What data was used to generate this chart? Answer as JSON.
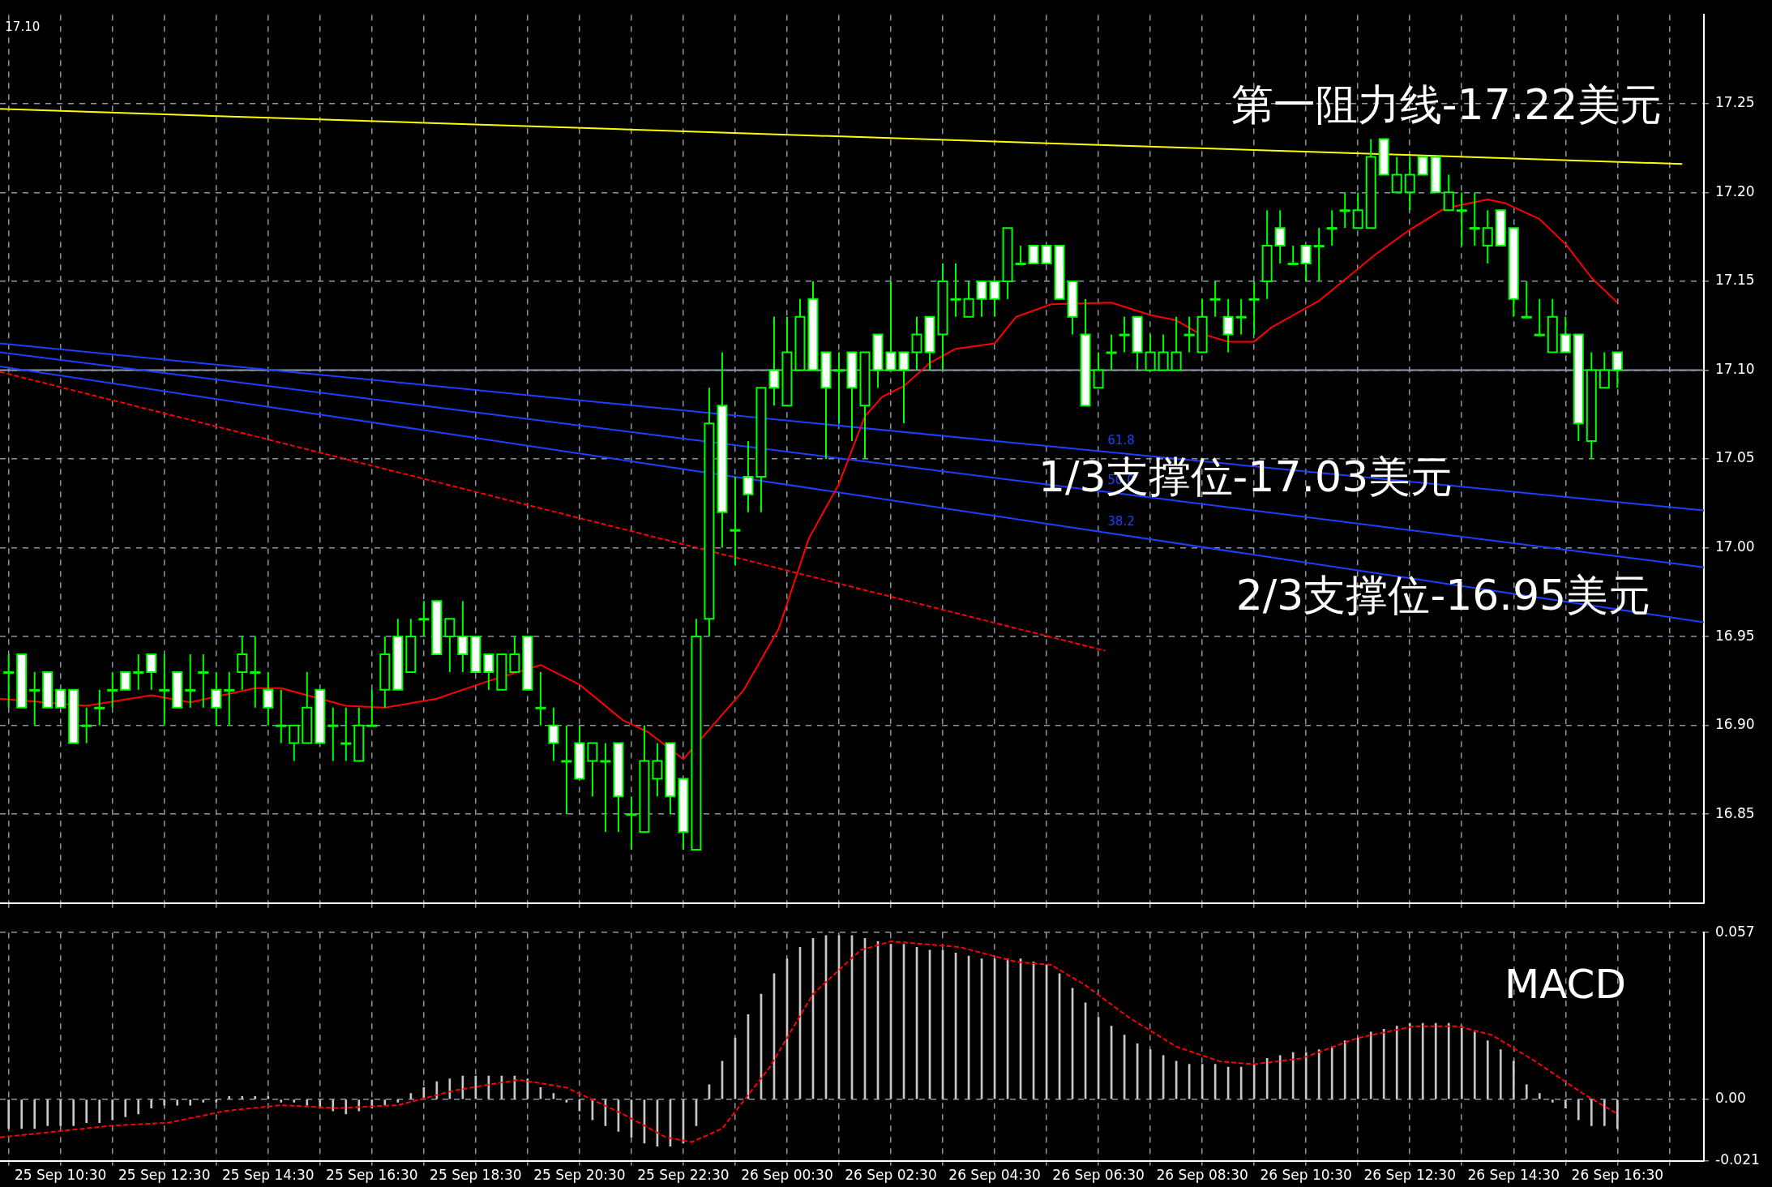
{
  "chart_data": [
    {
      "type": "candlestick",
      "color": "#00ff00",
      "x": [
        "--09-25T09:30",
        "--09-25T09:45",
        "--09-25T10:00",
        "--09-25T10:15",
        "--09-25T10:30",
        "--09-25T10:45",
        "--09-25T11:00",
        "--09-25T11:15",
        "--09-25T11:30",
        "--09-25T11:45",
        "--09-25T12:00",
        "--09-25T12:15",
        "--09-25T12:30",
        "--09-25T12:45",
        "--09-25T13:00",
        "--09-25T13:15",
        "--09-25T13:30",
        "--09-25T13:45",
        "--09-25T14:00",
        "--09-25T14:15",
        "--09-25T14:30",
        "--09-25T14:45",
        "--09-25T15:00",
        "--09-25T15:15",
        "--09-25T15:30",
        "--09-25T15:45",
        "--09-25T16:00",
        "--09-25T16:15",
        "--09-25T16:30",
        "--09-25T16:45",
        "--09-25T17:00",
        "--09-25T17:15",
        "--09-25T17:30",
        "--09-25T17:45",
        "--09-25T18:00",
        "--09-25T18:15",
        "--09-25T18:30",
        "--09-25T18:45",
        "--09-25T19:00",
        "--09-25T19:15",
        "--09-25T19:30",
        "--09-25T19:45",
        "--09-25T20:00",
        "--09-25T20:15",
        "--09-25T20:30",
        "--09-25T20:45",
        "--09-25T21:00",
        "--09-25T21:15",
        "--09-25T21:30",
        "--09-25T21:45",
        "--09-25T22:00",
        "--09-25T22:15",
        "--09-25T22:30",
        "--09-25T22:45",
        "--09-25T23:00",
        "--09-25T23:15",
        "--09-25T23:30",
        "--09-25T23:45",
        "--09-26T00:00",
        "--09-26T00:15",
        "--09-26T00:30",
        "--09-26T00:45",
        "--09-26T01:00",
        "--09-26T01:15",
        "--09-26T01:30",
        "--09-26T01:45",
        "--09-26T02:00",
        "--09-26T02:15",
        "--09-26T02:30",
        "--09-26T02:45",
        "--09-26T03:00",
        "--09-26T03:15",
        "--09-26T03:30",
        "--09-26T03:45",
        "--09-26T04:00",
        "--09-26T04:15",
        "--09-26T04:30",
        "--09-26T04:45",
        "--09-26T05:00",
        "--09-26T05:15",
        "--09-26T05:30",
        "--09-26T05:45",
        "--09-26T06:00",
        "--09-26T06:15",
        "--09-26T06:30",
        "--09-26T06:45",
        "--09-26T07:00",
        "--09-26T07:15",
        "--09-26T07:30",
        "--09-26T07:45",
        "--09-26T08:00",
        "--09-26T08:15",
        "--09-26T08:30",
        "--09-26T08:45",
        "--09-26T09:00",
        "--09-26T09:15",
        "--09-26T09:30",
        "--09-26T09:45",
        "--09-26T10:00",
        "--09-26T10:15",
        "--09-26T10:30",
        "--09-26T10:45",
        "--09-26T11:00",
        "--09-26T11:15",
        "--09-26T11:30",
        "--09-26T11:45",
        "--09-26T12:00",
        "--09-26T12:15",
        "--09-26T12:30",
        "--09-26T12:45",
        "--09-26T13:00",
        "--09-26T13:15",
        "--09-26T13:30",
        "--09-26T13:45",
        "--09-26T14:00",
        "--09-26T14:15",
        "--09-26T14:30",
        "--09-26T14:45",
        "--09-26T15:00",
        "--09-26T15:15",
        "--09-26T15:30",
        "--09-26T15:45",
        "--09-26T16:00",
        "--09-26T16:15",
        "--09-26T16:30"
      ],
      "ohlc": [
        [
          16.93,
          16.94,
          16.91,
          16.93
        ],
        [
          16.94,
          16.94,
          16.91,
          16.91
        ],
        [
          16.92,
          16.93,
          16.9,
          16.92
        ],
        [
          16.93,
          16.93,
          16.91,
          16.91
        ],
        [
          16.92,
          16.92,
          16.91,
          16.91
        ],
        [
          16.92,
          16.92,
          16.89,
          16.89
        ],
        [
          16.9,
          16.91,
          16.89,
          16.9
        ],
        [
          16.91,
          16.92,
          16.9,
          16.91
        ],
        [
          16.92,
          16.93,
          16.91,
          16.92
        ],
        [
          16.93,
          16.93,
          16.92,
          16.92
        ],
        [
          16.93,
          16.94,
          16.92,
          16.93
        ],
        [
          16.94,
          16.94,
          16.92,
          16.93
        ],
        [
          16.92,
          16.94,
          16.9,
          16.92
        ],
        [
          16.93,
          16.93,
          16.91,
          16.91
        ],
        [
          16.92,
          16.94,
          16.91,
          16.92
        ],
        [
          16.93,
          16.94,
          16.91,
          16.93
        ],
        [
          16.92,
          16.93,
          16.9,
          16.91
        ],
        [
          16.92,
          16.93,
          16.9,
          16.92
        ],
        [
          16.93,
          16.95,
          16.92,
          16.94
        ],
        [
          16.93,
          16.95,
          16.91,
          16.93
        ],
        [
          16.92,
          16.93,
          16.9,
          16.91
        ],
        [
          16.9,
          16.92,
          16.89,
          16.9
        ],
        [
          16.89,
          16.9,
          16.88,
          16.9
        ],
        [
          16.89,
          16.93,
          16.89,
          16.91
        ],
        [
          16.92,
          16.92,
          16.89,
          16.89
        ],
        [
          16.9,
          16.91,
          16.88,
          16.9
        ],
        [
          16.89,
          16.91,
          16.88,
          16.89
        ],
        [
          16.88,
          16.91,
          16.88,
          16.9
        ],
        [
          16.9,
          16.92,
          16.9,
          16.9
        ],
        [
          16.92,
          16.95,
          16.91,
          16.94
        ],
        [
          16.95,
          16.96,
          16.92,
          16.92
        ],
        [
          16.93,
          16.96,
          16.93,
          16.95
        ],
        [
          16.96,
          16.97,
          16.95,
          16.96
        ],
        [
          16.97,
          16.97,
          16.94,
          16.94
        ],
        [
          16.95,
          16.96,
          16.93,
          16.96
        ],
        [
          16.95,
          16.97,
          16.93,
          16.94
        ],
        [
          16.95,
          16.95,
          16.93,
          16.93
        ],
        [
          16.94,
          16.94,
          16.92,
          16.93
        ],
        [
          16.92,
          16.94,
          16.92,
          16.94
        ],
        [
          16.93,
          16.95,
          16.93,
          16.94
        ],
        [
          16.95,
          16.95,
          16.92,
          16.92
        ],
        [
          16.91,
          16.93,
          16.9,
          16.91
        ],
        [
          16.9,
          16.91,
          16.88,
          16.89
        ],
        [
          16.88,
          16.9,
          16.85,
          16.88
        ],
        [
          16.89,
          16.9,
          16.87,
          16.87
        ],
        [
          16.88,
          16.89,
          16.86,
          16.89
        ],
        [
          16.88,
          16.89,
          16.84,
          16.88
        ],
        [
          16.89,
          16.89,
          16.84,
          16.86
        ],
        [
          16.85,
          16.86,
          16.83,
          16.85
        ],
        [
          16.84,
          16.9,
          16.84,
          16.88
        ],
        [
          16.87,
          16.89,
          16.86,
          16.88
        ],
        [
          16.89,
          16.89,
          16.85,
          16.86
        ],
        [
          16.87,
          16.87,
          16.83,
          16.84
        ],
        [
          16.83,
          16.96,
          16.83,
          16.95
        ],
        [
          16.96,
          17.09,
          16.95,
          17.07
        ],
        [
          17.08,
          17.11,
          17.0,
          17.02
        ],
        [
          17.01,
          17.04,
          16.99,
          17.01
        ],
        [
          17.04,
          17.06,
          17.02,
          17.03
        ],
        [
          17.04,
          17.09,
          17.02,
          17.09
        ],
        [
          17.1,
          17.13,
          17.08,
          17.09
        ],
        [
          17.08,
          17.13,
          17.08,
          17.11
        ],
        [
          17.1,
          17.14,
          17.1,
          17.13
        ],
        [
          17.14,
          17.15,
          17.1,
          17.1
        ],
        [
          17.11,
          17.11,
          17.05,
          17.09
        ],
        [
          17.1,
          17.11,
          17.07,
          17.1
        ],
        [
          17.11,
          17.11,
          17.06,
          17.09
        ],
        [
          17.08,
          17.11,
          17.05,
          17.11
        ],
        [
          17.12,
          17.12,
          17.09,
          17.1
        ],
        [
          17.11,
          17.15,
          17.1,
          17.1
        ],
        [
          17.11,
          17.11,
          17.07,
          17.1
        ],
        [
          17.11,
          17.13,
          17.1,
          17.12
        ],
        [
          17.13,
          17.13,
          17.1,
          17.11
        ],
        [
          17.12,
          17.16,
          17.1,
          17.15
        ],
        [
          17.14,
          17.16,
          17.13,
          17.14
        ],
        [
          17.13,
          17.15,
          17.13,
          17.14
        ],
        [
          17.15,
          17.15,
          17.13,
          17.14
        ],
        [
          17.15,
          17.15,
          17.13,
          17.14
        ],
        [
          17.15,
          17.18,
          17.14,
          17.18
        ],
        [
          17.16,
          17.17,
          17.16,
          17.16
        ],
        [
          17.17,
          17.17,
          17.16,
          17.16
        ],
        [
          17.17,
          17.17,
          17.16,
          17.16
        ],
        [
          17.17,
          17.17,
          17.14,
          17.14
        ],
        [
          17.15,
          17.15,
          17.12,
          17.13
        ],
        [
          17.12,
          17.14,
          17.08,
          17.08
        ],
        [
          17.09,
          17.11,
          17.09,
          17.1
        ],
        [
          17.11,
          17.12,
          17.1,
          17.11
        ],
        [
          17.12,
          17.13,
          17.11,
          17.12
        ],
        [
          17.13,
          17.13,
          17.1,
          17.11
        ],
        [
          17.1,
          17.12,
          17.1,
          17.11
        ],
        [
          17.1,
          17.12,
          17.1,
          17.11
        ],
        [
          17.1,
          17.13,
          17.1,
          17.11
        ],
        [
          17.12,
          17.13,
          17.11,
          17.12
        ],
        [
          17.11,
          17.14,
          17.11,
          17.13
        ],
        [
          17.14,
          17.15,
          17.13,
          17.14
        ],
        [
          17.13,
          17.14,
          17.11,
          17.12
        ],
        [
          17.13,
          17.14,
          17.12,
          17.13
        ],
        [
          17.14,
          17.15,
          17.12,
          17.14
        ],
        [
          17.15,
          17.19,
          17.14,
          17.17
        ],
        [
          17.18,
          17.19,
          17.16,
          17.17
        ],
        [
          17.16,
          17.17,
          17.16,
          17.16
        ],
        [
          17.17,
          17.17,
          17.15,
          17.16
        ],
        [
          17.17,
          17.18,
          17.15,
          17.17
        ],
        [
          17.18,
          17.19,
          17.17,
          17.18
        ],
        [
          17.19,
          17.2,
          17.18,
          17.19
        ],
        [
          17.18,
          17.2,
          17.18,
          17.19
        ],
        [
          17.18,
          17.23,
          17.18,
          17.22
        ],
        [
          17.23,
          17.23,
          17.21,
          17.21
        ],
        [
          17.2,
          17.22,
          17.2,
          17.21
        ],
        [
          17.2,
          17.22,
          17.19,
          17.21
        ],
        [
          17.22,
          17.22,
          17.21,
          17.21
        ],
        [
          17.22,
          17.22,
          17.2,
          17.2
        ],
        [
          17.19,
          17.21,
          17.19,
          17.2
        ],
        [
          17.19,
          17.2,
          17.17,
          17.19
        ],
        [
          17.18,
          17.2,
          17.17,
          17.18
        ],
        [
          17.17,
          17.19,
          17.16,
          17.18
        ],
        [
          17.19,
          17.19,
          17.17,
          17.17
        ],
        [
          17.18,
          17.18,
          17.13,
          17.14
        ],
        [
          17.13,
          17.15,
          17.13,
          17.13
        ],
        [
          17.12,
          17.14,
          17.12,
          17.12
        ],
        [
          17.11,
          17.14,
          17.11,
          17.13
        ],
        [
          17.12,
          17.13,
          17.11,
          17.11
        ],
        [
          17.12,
          17.12,
          17.06,
          17.07
        ],
        [
          17.06,
          17.11,
          17.05,
          17.1
        ],
        [
          17.09,
          17.11,
          17.09,
          17.1
        ],
        [
          17.11,
          17.11,
          17.09,
          17.1
        ]
      ],
      "series": [
        {
          "type": "line",
          "color": "#ff0000",
          "x": [
            "--09-25T09:20",
            "--09-25T11:00",
            "--09-25T12:15",
            "--09-25T13:00",
            "--09-25T14:15",
            "--09-25T14:45",
            "--09-25T16:00",
            "--09-25T16:45",
            "--09-25T17:45",
            "--09-25T18:45",
            "--09-25T19:45",
            "--09-25T20:30",
            "--09-25T21:20",
            "--09-25T21:50",
            "--09-25T22:30",
            "--09-25T23:40",
            "--09-26T00:20",
            "--09-26T00:55",
            "--09-26T01:30",
            "--09-26T02:00",
            "--09-26T02:20",
            "--09-26T02:45",
            "--09-26T03:15",
            "--09-26T03:45",
            "--09-26T04:30",
            "--09-26T04:55",
            "--09-26T05:35",
            "--09-26T06:45",
            "--09-26T07:30",
            "--09-26T08:00",
            "--09-26T08:25",
            "--09-26T09:00",
            "--09-26T09:30",
            "--09-26T09:50",
            "--09-26T10:45",
            "--09-26T11:25",
            "--09-26T11:50",
            "--09-26T12:30",
            "--09-26T13:10",
            "--09-26T14:00",
            "--09-26T14:20",
            "--09-26T15:00",
            "--09-26T15:30",
            "--09-26T16:00",
            "--09-26T16:30"
          ],
          "values": [
            16.915,
            16.911,
            16.917,
            16.913,
            16.921,
            16.921,
            16.911,
            16.91,
            16.915,
            16.925,
            16.934,
            16.923,
            16.903,
            16.896,
            16.881,
            16.92,
            16.954,
            17.005,
            17.036,
            17.074,
            17.085,
            17.091,
            17.104,
            17.112,
            17.115,
            17.13,
            17.137,
            17.138,
            17.131,
            17.128,
            17.121,
            17.116,
            17.116,
            17.124,
            17.139,
            17.155,
            17.165,
            17.179,
            17.191,
            17.196,
            17.194,
            17.185,
            17.171,
            17.152,
            17.138
          ]
        },
        {
          "type": "line",
          "color": "#ffff00",
          "x": [
            "--09-25T09:20",
            "--09-26T17:45"
          ],
          "values": [
            17.247,
            17.216
          ]
        },
        {
          "type": "line",
          "name": "61.8",
          "color": "#1f3fff",
          "x": [
            "--09-25T09:20",
            "--09-26T18:10"
          ],
          "values": [
            17.115,
            17.021
          ]
        },
        {
          "type": "line",
          "name": "50.0",
          "color": "#1f3fff",
          "x": [
            "--09-25T09:20",
            "--09-26T18:10"
          ],
          "values": [
            17.11,
            16.989
          ]
        },
        {
          "type": "line",
          "name": "38.2",
          "color": "#1f3fff",
          "x": [
            "--09-25T09:20",
            "--09-26T18:10"
          ],
          "values": [
            17.102,
            16.958
          ]
        },
        {
          "type": "line",
          "color": "#ff0000",
          "line_style": "dashed",
          "x": [
            "--09-25T09:20",
            "--09-26T06:38"
          ],
          "values": [
            17.099,
            16.942
          ]
        }
      ],
      "xlim": [
        "--09-25T09:20",
        "--09-26T18:10"
      ],
      "xticks": [
        {
          "value": "--09-25T09:30",
          "label": null
        },
        {
          "value": "--09-25T10:30",
          "label": null
        },
        {
          "value": "--09-25T11:30",
          "label": null
        },
        {
          "value": "--09-25T12:30",
          "label": null
        },
        {
          "value": "--09-25T13:30",
          "label": null
        },
        {
          "value": "--09-25T14:30",
          "label": null
        },
        {
          "value": "--09-25T15:30",
          "label": null
        },
        {
          "value": "--09-25T16:30",
          "label": null
        },
        {
          "value": "--09-25T17:30",
          "label": null
        },
        {
          "value": "--09-25T18:30",
          "label": null
        },
        {
          "value": "--09-25T19:30",
          "label": null
        },
        {
          "value": "--09-25T20:30",
          "label": null
        },
        {
          "value": "--09-25T21:30",
          "label": null
        },
        {
          "value": "--09-25T22:30",
          "label": null
        },
        {
          "value": "--09-25T23:30",
          "label": null
        },
        {
          "value": "--09-26T00:30",
          "label": null
        },
        {
          "value": "--09-26T01:30",
          "label": null
        },
        {
          "value": "--09-26T02:30",
          "label": null
        },
        {
          "value": "--09-26T03:30",
          "label": null
        },
        {
          "value": "--09-26T04:30",
          "label": null
        },
        {
          "value": "--09-26T05:30",
          "label": null
        },
        {
          "value": "--09-26T06:30",
          "label": null
        },
        {
          "value": "--09-26T07:30",
          "label": null
        },
        {
          "value": "--09-26T08:30",
          "label": null
        },
        {
          "value": "--09-26T09:30",
          "label": null
        },
        {
          "value": "--09-26T10:30",
          "label": null
        },
        {
          "value": "--09-26T11:30",
          "label": null
        },
        {
          "value": "--09-26T12:30",
          "label": null
        },
        {
          "value": "--09-26T13:30",
          "label": null
        },
        {
          "value": "--09-26T14:30",
          "label": null
        },
        {
          "value": "--09-26T15:30",
          "label": null
        },
        {
          "value": "--09-26T16:30",
          "label": null
        },
        {
          "value": "--09-26T17:30",
          "label": null
        }
      ],
      "ylim": [
        16.8,
        17.3
      ],
      "yticks": [
        16.85,
        {
          "value": 16.9,
          "label": "16.90"
        },
        16.95,
        {
          "value": 17.0,
          "label": "17.00"
        },
        17.05,
        {
          "value": 17.1,
          "label": "17.10"
        },
        17.15,
        {
          "value": 17.2,
          "label": "17.20"
        },
        17.25
      ],
      "ref_lines": [
        {
          "axis": "y",
          "value": 17.1,
          "color": "#8c9aa8"
        }
      ],
      "annotations": [
        "17.10",
        "第一阻力线-17.22美元",
        "1/3支撑位-17.03美元",
        "2/3支撑位-16.95美元"
      ],
      "grid": true,
      "tick_labels": "y"
    },
    {
      "type": "bar",
      "title": "MACD",
      "x": [
        "--09-25T09:30",
        "--09-25T09:45",
        "--09-25T10:00",
        "--09-25T10:15",
        "--09-25T10:30",
        "--09-25T10:45",
        "--09-25T11:00",
        "--09-25T11:15",
        "--09-25T11:30",
        "--09-25T11:45",
        "--09-25T12:00",
        "--09-25T12:15",
        "--09-25T12:30",
        "--09-25T12:45",
        "--09-25T13:00",
        "--09-25T13:15",
        "--09-25T13:30",
        "--09-25T13:45",
        "--09-25T14:00",
        "--09-25T14:15",
        "--09-25T14:30",
        "--09-25T14:45",
        "--09-25T15:00",
        "--09-25T15:15",
        "--09-25T15:30",
        "--09-25T15:45",
        "--09-25T16:00",
        "--09-25T16:15",
        "--09-25T16:30",
        "--09-25T16:45",
        "--09-25T17:00",
        "--09-25T17:15",
        "--09-25T17:30",
        "--09-25T17:45",
        "--09-25T18:00",
        "--09-25T18:15",
        "--09-25T18:30",
        "--09-25T18:45",
        "--09-25T19:00",
        "--09-25T19:15",
        "--09-25T19:30",
        "--09-25T19:45",
        "--09-25T20:00",
        "--09-25T20:15",
        "--09-25T20:30",
        "--09-25T20:45",
        "--09-25T21:00",
        "--09-25T21:15",
        "--09-25T21:30",
        "--09-25T21:45",
        "--09-25T22:00",
        "--09-25T22:15",
        "--09-25T22:30",
        "--09-25T22:45",
        "--09-25T23:00",
        "--09-25T23:15",
        "--09-25T23:30",
        "--09-25T23:45",
        "--09-26T00:00",
        "--09-26T00:15",
        "--09-26T00:30",
        "--09-26T00:45",
        "--09-26T01:00",
        "--09-26T01:15",
        "--09-26T01:30",
        "--09-26T01:45",
        "--09-26T02:00",
        "--09-26T02:15",
        "--09-26T02:30",
        "--09-26T02:45",
        "--09-26T03:00",
        "--09-26T03:15",
        "--09-26T03:30",
        "--09-26T03:45",
        "--09-26T04:00",
        "--09-26T04:15",
        "--09-26T04:30",
        "--09-26T04:45",
        "--09-26T05:00",
        "--09-26T05:15",
        "--09-26T05:30",
        "--09-26T05:45",
        "--09-26T06:00",
        "--09-26T06:15",
        "--09-26T06:30",
        "--09-26T06:45",
        "--09-26T07:00",
        "--09-26T07:15",
        "--09-26T07:30",
        "--09-26T07:45",
        "--09-26T08:00",
        "--09-26T08:15",
        "--09-26T08:30",
        "--09-26T08:45",
        "--09-26T09:00",
        "--09-26T09:15",
        "--09-26T09:30",
        "--09-26T09:45",
        "--09-26T10:00",
        "--09-26T10:15",
        "--09-26T10:30",
        "--09-26T10:45",
        "--09-26T11:00",
        "--09-26T11:15",
        "--09-26T11:30",
        "--09-26T11:45",
        "--09-26T12:00",
        "--09-26T12:15",
        "--09-26T12:30",
        "--09-26T12:45",
        "--09-26T13:00",
        "--09-26T13:15",
        "--09-26T13:30",
        "--09-26T13:45",
        "--09-26T14:00",
        "--09-26T14:15",
        "--09-26T14:30",
        "--09-26T14:45",
        "--09-26T15:00",
        "--09-26T15:15",
        "--09-26T15:30",
        "--09-26T15:45",
        "--09-26T16:00",
        "--09-26T16:15",
        "--09-26T16:30"
      ],
      "series": [
        {
          "type": "bar",
          "color": "#c8c8c8",
          "values": [
            -0.01,
            -0.01,
            -0.01,
            -0.009,
            -0.009,
            -0.009,
            -0.008,
            -0.008,
            -0.007,
            -0.006,
            -0.005,
            -0.003,
            -0.002,
            -0.002,
            -0.002,
            -0.001,
            -0.001,
            0.001,
            0.001,
            0.001,
            0.001,
            -0.001,
            -0.001,
            -0.002,
            -0.003,
            -0.004,
            -0.005,
            -0.004,
            -0.003,
            -0.002,
            -0.001,
            0.002,
            0.004,
            0.006,
            0.007,
            0.008,
            0.008,
            0.008,
            0.008,
            0.008,
            0.007,
            0.004,
            0.002,
            -0.001,
            -0.004,
            -0.007,
            -0.009,
            -0.011,
            -0.013,
            -0.015,
            -0.016,
            -0.016,
            -0.015,
            -0.009,
            0.005,
            0.013,
            0.021,
            0.029,
            0.036,
            0.043,
            0.048,
            0.052,
            0.055,
            0.056,
            0.056,
            0.056,
            0.055,
            0.054,
            0.053,
            0.053,
            0.052,
            0.051,
            0.051,
            0.05,
            0.049,
            0.048,
            0.048,
            0.048,
            0.048,
            0.047,
            0.046,
            0.043,
            0.038,
            0.033,
            0.028,
            0.025,
            0.022,
            0.019,
            0.017,
            0.015,
            0.013,
            0.012,
            0.012,
            0.012,
            0.011,
            0.011,
            0.012,
            0.014,
            0.015,
            0.016,
            0.016,
            0.017,
            0.018,
            0.02,
            0.021,
            0.023,
            0.024,
            0.025,
            0.026,
            0.026,
            0.026,
            0.026,
            0.025,
            0.023,
            0.02,
            0.017,
            0.013,
            0.005,
            0.002,
            -0.001,
            -0.003,
            -0.007,
            -0.009,
            -0.009,
            -0.01
          ]
        },
        {
          "type": "line",
          "color": "#ff0000",
          "line_style": "dashed",
          "x": [
            "--09-25T09:20",
            "--09-25T11:30",
            "--09-25T12:35",
            "--09-25T13:40",
            "--09-25T14:45",
            "--09-25T15:50",
            "--09-25T17:00",
            "--09-25T18:05",
            "--09-25T19:20",
            "--09-25T20:15",
            "--09-25T21:20",
            "--09-25T22:10",
            "--09-25T22:40",
            "--09-25T23:15",
            "--09-26T00:10",
            "--09-26T01:00",
            "--09-26T01:55",
            "--09-26T02:30",
            "--09-26T03:50",
            "--09-26T04:55",
            "--09-26T05:35",
            "--09-26T06:15",
            "--09-26T07:05",
            "--09-26T08:00",
            "--09-26T08:50",
            "--09-26T09:30",
            "--09-26T10:25",
            "--09-26T11:30",
            "--09-26T12:35",
            "--09-26T13:25",
            "--09-26T14:05",
            "--09-26T14:55",
            "--09-26T15:50",
            "--09-26T16:30"
          ],
          "values": [
            -0.013,
            -0.009,
            -0.008,
            -0.004,
            -0.002,
            -0.003,
            -0.002,
            0.003,
            0.0067,
            0.004,
            -0.005,
            -0.013,
            -0.0146,
            -0.01,
            0.011,
            0.036,
            0.051,
            0.054,
            0.052,
            0.047,
            0.046,
            0.039,
            0.028,
            0.018,
            0.013,
            0.012,
            0.014,
            0.021,
            0.025,
            0.025,
            0.022,
            0.013,
            0.002,
            -0.005
          ]
        }
      ],
      "xlim": [
        "--09-25T09:20",
        "--09-26T18:10"
      ],
      "xticks": [
        {
          "value": "--09-25T09:30",
          "label": null
        },
        {
          "value": "--09-25T10:30",
          "label": "25 Sep 10:30"
        },
        {
          "value": "--09-25T11:30",
          "label": null
        },
        {
          "value": "--09-25T12:30",
          "label": "25 Sep 12:30"
        },
        {
          "value": "--09-25T13:30",
          "label": null
        },
        {
          "value": "--09-25T14:30",
          "label": "25 Sep 14:30"
        },
        {
          "value": "--09-25T15:30",
          "label": null
        },
        {
          "value": "--09-25T16:30",
          "label": "25 Sep 16:30"
        },
        {
          "value": "--09-25T17:30",
          "label": null
        },
        {
          "value": "--09-25T18:30",
          "label": "25 Sep 18:30"
        },
        {
          "value": "--09-25T19:30",
          "label": null
        },
        {
          "value": "--09-25T20:30",
          "label": "25 Sep 20:30"
        },
        {
          "value": "--09-25T21:30",
          "label": null
        },
        {
          "value": "--09-25T22:30",
          "label": "25 Sep 22:30"
        },
        {
          "value": "--09-25T23:30",
          "label": null
        },
        {
          "value": "--09-26T00:30",
          "label": "26 Sep 00:30"
        },
        {
          "value": "--09-26T01:30",
          "label": null
        },
        {
          "value": "--09-26T02:30",
          "label": "26 Sep 02:30"
        },
        {
          "value": "--09-26T03:30",
          "label": null
        },
        {
          "value": "--09-26T04:30",
          "label": "26 Sep 04:30"
        },
        {
          "value": "--09-26T05:30",
          "label": null
        },
        {
          "value": "--09-26T06:30",
          "label": "26 Sep 06:30"
        },
        {
          "value": "--09-26T07:30",
          "label": null
        },
        {
          "value": "--09-26T08:30",
          "label": "26 Sep 08:30"
        },
        {
          "value": "--09-26T09:30",
          "label": null
        },
        {
          "value": "--09-26T10:30",
          "label": "26 Sep 10:30"
        },
        {
          "value": "--09-26T11:30",
          "label": null
        },
        {
          "value": "--09-26T12:30",
          "label": "26 Sep 12:30"
        },
        {
          "value": "--09-26T13:30",
          "label": null
        },
        {
          "value": "--09-26T14:30",
          "label": "26 Sep 14:30"
        },
        {
          "value": "--09-26T15:30",
          "label": null
        },
        {
          "value": "--09-26T16:30",
          "label": "26 Sep 16:30"
        },
        {
          "value": "--09-26T17:30",
          "label": null
        }
      ],
      "ylim": [
        -0.021,
        0.057
      ],
      "yticks": [
        -0.021,
        {
          "value": 0,
          "label": "0.00"
        },
        0.057
      ],
      "grid": true
    }
  ]
}
